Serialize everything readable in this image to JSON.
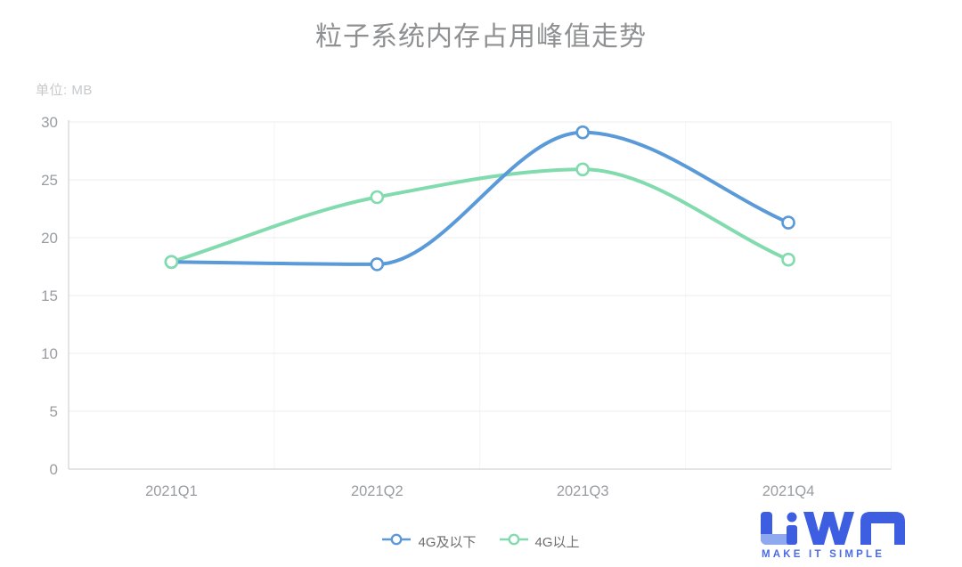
{
  "title": "粒子系统内存占用峰值走势",
  "unit_label": "单位: MB",
  "chart_data": {
    "type": "line",
    "smooth": true,
    "marker": "hollow-circle",
    "categories": [
      "2021Q1",
      "2021Q2",
      "2021Q3",
      "2021Q4"
    ],
    "series": [
      {
        "name": "4G及以下",
        "color": "#5a9ad8",
        "values": [
          17.9,
          17.7,
          29.1,
          21.3
        ]
      },
      {
        "name": "4G以上",
        "color": "#82dbae",
        "values": [
          17.9,
          23.5,
          25.9,
          18.1
        ]
      }
    ],
    "title": "粒子系统内存占用峰值走势",
    "ylabel": "单位: MB",
    "xlabel": "",
    "ylim": [
      0,
      30
    ],
    "y_ticks": [
      0,
      5,
      10,
      15,
      20,
      25,
      30
    ],
    "grid": true,
    "legend_position": "bottom"
  },
  "colors": {
    "axis_line": "#c9cacc",
    "grid_h": "#ececee",
    "grid_v": "#f4f4f6",
    "tick_label": "#9a9ca0",
    "marker_fill": "#ffffff"
  },
  "logo": {
    "tagline": "MAKE IT SIMPLE",
    "blue_dark": "#3d5ee0",
    "blue_light": "#8fa9ef"
  }
}
